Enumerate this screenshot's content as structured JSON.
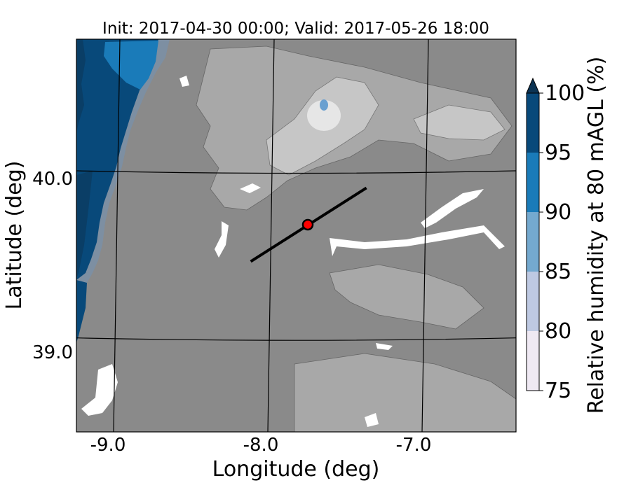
{
  "title": "Init: 2017-04-30 00:00; Valid: 2017-05-26 18:00",
  "map": {
    "xlabel": "Longitude (deg)",
    "ylabel": "Latitude (deg)",
    "x_ticks": [
      "-9.0",
      "-8.0",
      "-7.0"
    ],
    "y_ticks": [
      "40.0",
      "39.0"
    ],
    "extent": {
      "lon": [
        -9.25,
        -6.4
      ],
      "lat": [
        38.45,
        40.8
      ]
    },
    "colors": {
      "ocean_dark": "#08497a",
      "ocean": "#1a7bb9",
      "ocean_light": "#74a9cf",
      "land": "#8a8a8a",
      "land_light": "#a8a8a8",
      "highland": "#c6c6c6",
      "gridline": "#000000",
      "transect": "#000000",
      "site_marker": "#ff0000"
    },
    "transect": {
      "start": {
        "lon": -8.12,
        "lat": 39.47
      },
      "end": {
        "lon": -7.37,
        "lat": 39.91
      }
    },
    "site": {
      "lon": -7.75,
      "lat": 39.69
    }
  },
  "colorbar": {
    "label": "Relative humidity at 80 mAGL (%)",
    "ticks": [
      "75",
      "80",
      "85",
      "90",
      "95",
      "100"
    ],
    "levels": [
      75,
      80,
      85,
      90,
      95,
      100
    ],
    "colors": [
      "#efe9f3",
      "#bec9e2",
      "#74a9cf",
      "#1a7bb9",
      "#08497a"
    ],
    "extend_color": "#0b3353",
    "extend": "max"
  }
}
